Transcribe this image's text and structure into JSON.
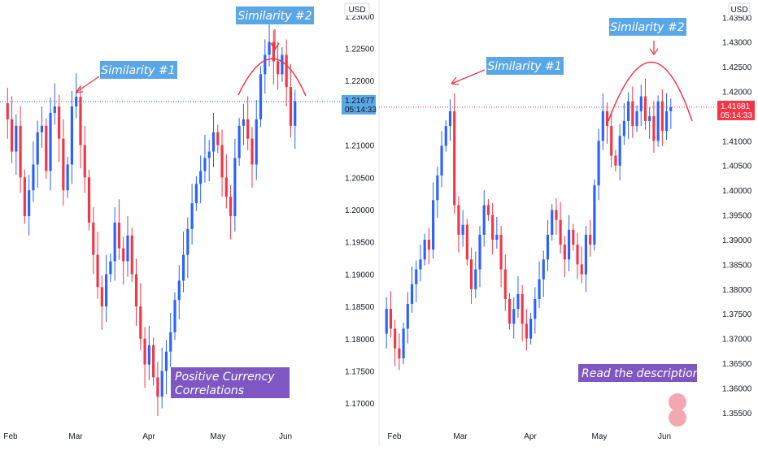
{
  "chart_data": [
    {
      "type": "candlestick",
      "currency": "USD",
      "y_ticks": [
        "1.23000",
        "1.22500",
        "1.22000",
        "1.21000",
        "1.20500",
        "1.20000",
        "1.19500",
        "1.19000",
        "1.18500",
        "1.18000",
        "1.17500",
        "1.17000"
      ],
      "y_tick_values": [
        1.23,
        1.225,
        1.22,
        1.21,
        1.205,
        1.2,
        1.195,
        1.19,
        1.185,
        1.18,
        1.175,
        1.17
      ],
      "ylim": [
        1.167,
        1.2325
      ],
      "x_ticks": [
        "Feb",
        "Mar",
        "Apr",
        "May",
        "Jun"
      ],
      "last_price": "1.21677",
      "countdown": "05:14:33",
      "last_price_value": 1.21677,
      "annotations": [
        "Similarity #1",
        "Similarity #2"
      ],
      "note": [
        "Positive Currency",
        "Correlations"
      ],
      "colors": {
        "up": "#2962ff",
        "down": "#f23645",
        "price_line": "#2962ff",
        "price_tag": "#5aa7e8"
      },
      "path": [
        1.2165,
        1.214,
        1.209,
        1.213,
        1.205,
        1.199,
        1.203,
        1.207,
        1.212,
        1.213,
        1.206,
        1.215,
        1.216,
        1.211,
        1.203,
        1.207,
        1.216,
        1.2175,
        1.21,
        1.205,
        1.198,
        1.193,
        1.188,
        1.185,
        1.19,
        1.192,
        1.198,
        1.194,
        1.192,
        1.196,
        1.19,
        1.185,
        1.18,
        1.176,
        1.179,
        1.174,
        1.171,
        1.175,
        1.178,
        1.181,
        1.186,
        1.189,
        1.193,
        1.197,
        1.201,
        1.204,
        1.206,
        1.208,
        1.209,
        1.212,
        1.21,
        1.205,
        1.202,
        1.199,
        1.208,
        1.213,
        1.214,
        1.211,
        1.207,
        1.214,
        1.221,
        1.224,
        1.226,
        1.223,
        1.221,
        1.224,
        1.219,
        1.213,
        1.2168
      ]
    },
    {
      "type": "candlestick",
      "currency": "USD",
      "y_ticks": [
        "1.43500",
        "1.43000",
        "1.42500",
        "1.42000",
        "1.41000",
        "1.40500",
        "1.40000",
        "1.39500",
        "1.39000",
        "1.38500",
        "1.38000",
        "1.37500",
        "1.37000",
        "1.36500",
        "1.36000",
        "1.35500"
      ],
      "y_tick_values": [
        1.435,
        1.43,
        1.425,
        1.42,
        1.41,
        1.405,
        1.4,
        1.395,
        1.39,
        1.385,
        1.38,
        1.375,
        1.37,
        1.365,
        1.36,
        1.355
      ],
      "ylim": [
        1.353,
        1.4385
      ],
      "x_ticks": [
        "Feb",
        "Mar",
        "Apr",
        "May",
        "Jun"
      ],
      "last_price": "1.41681",
      "countdown": "05:14:33",
      "last_price_value": 1.41681,
      "annotations": [
        "Similarity #1",
        "Similarity #2"
      ],
      "note": [
        "Read the description"
      ],
      "colors": {
        "up": "#2962ff",
        "down": "#f23645",
        "price_line": "#f23645",
        "price_tag": "#f23645"
      },
      "path": [
        1.371,
        1.376,
        1.372,
        1.368,
        1.366,
        1.372,
        1.377,
        1.381,
        1.384,
        1.386,
        1.39,
        1.388,
        1.398,
        1.403,
        1.409,
        1.413,
        1.416,
        1.397,
        1.391,
        1.393,
        1.386,
        1.38,
        1.384,
        1.391,
        1.397,
        1.395,
        1.39,
        1.391,
        1.384,
        1.378,
        1.373,
        1.376,
        1.379,
        1.373,
        1.37,
        1.374,
        1.378,
        1.382,
        1.386,
        1.391,
        1.396,
        1.394,
        1.389,
        1.386,
        1.392,
        1.389,
        1.385,
        1.383,
        1.391,
        1.389,
        1.401,
        1.41,
        1.416,
        1.413,
        1.407,
        1.405,
        1.411,
        1.414,
        1.418,
        1.413,
        1.416,
        1.419,
        1.414,
        1.415,
        1.41,
        1.418,
        1.412,
        1.416,
        1.4168
      ]
    }
  ]
}
